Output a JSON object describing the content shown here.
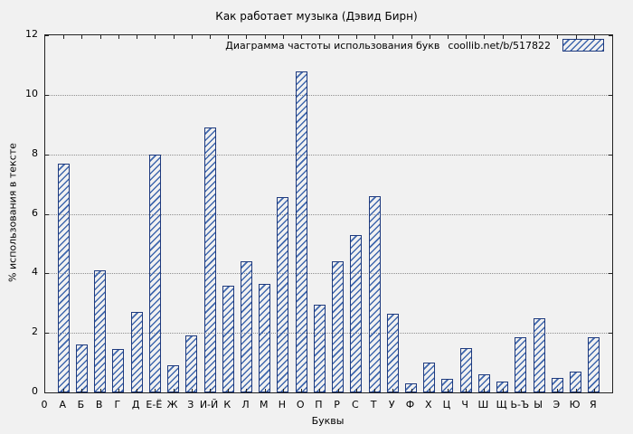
{
  "chart_data": {
    "type": "bar",
    "title": "Как работает музыка (Дэвид Бирн)",
    "legend_text": "Диаграмма частоты использования букв",
    "legend_source": "coollib.net/b/517822",
    "legend_position": "top-right",
    "xlabel": "Буквы",
    "ylabel": "% использования в тексте",
    "ylim": [
      0,
      12
    ],
    "yticks": [
      0,
      2,
      4,
      6,
      8,
      10,
      12
    ],
    "origin_label": "0",
    "grid": true,
    "categories": [
      "А",
      "Б",
      "В",
      "Г",
      "Д",
      "Е-Ё",
      "Ж",
      "З",
      "И-Й",
      "К",
      "Л",
      "М",
      "Н",
      "О",
      "П",
      "Р",
      "С",
      "Т",
      "У",
      "Ф",
      "Х",
      "Ц",
      "Ч",
      "Ш",
      "Щ",
      "Ь-Ъ",
      "Ы",
      "Э",
      "Ю",
      "Я"
    ],
    "values": [
      7.7,
      1.6,
      4.1,
      1.45,
      2.7,
      8.0,
      0.9,
      1.9,
      8.9,
      3.6,
      4.4,
      3.65,
      6.55,
      10.8,
      2.95,
      4.4,
      5.3,
      6.6,
      2.65,
      0.3,
      1.0,
      0.45,
      1.5,
      0.6,
      0.35,
      1.85,
      2.5,
      0.5,
      0.7,
      1.85
    ],
    "colors": {
      "bar_edge": "#1e3a7e",
      "bar_hatch": "#3f67ad",
      "grid": "#8f8f8f",
      "background": "#f1f1f1",
      "plot_border": "#222222"
    }
  }
}
